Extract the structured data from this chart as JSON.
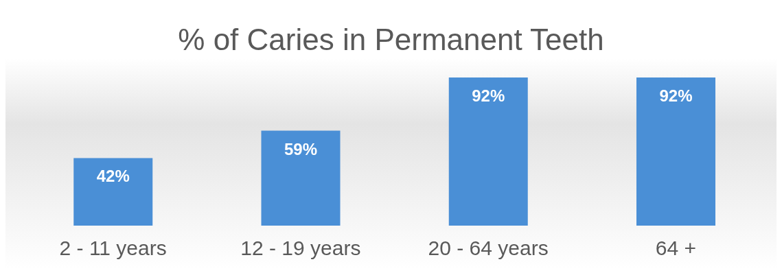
{
  "chart_data": {
    "type": "bar",
    "title": "% of Caries in Permanent Teeth",
    "categories": [
      "2 - 11 years",
      "12 - 19 years",
      "20 - 64 years",
      "64 +"
    ],
    "values": [
      42,
      59,
      92,
      92
    ],
    "value_labels": [
      "42%",
      "59%",
      "92%",
      "92%"
    ],
    "color": "#4a8fd6"
  }
}
